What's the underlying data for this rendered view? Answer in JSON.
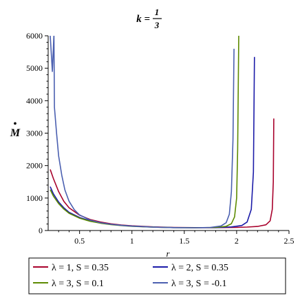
{
  "chart_data": {
    "type": "line",
    "title": {
      "lhs": "k =",
      "numerator": "1",
      "denominator": "3"
    },
    "xlabel": "r",
    "ylabel": "M",
    "ylabel_accent": "•",
    "xlim": [
      0.2,
      2.5
    ],
    "ylim": [
      0,
      6000
    ],
    "xticks": [
      0.5,
      1,
      1.5,
      2,
      2.5
    ],
    "xtick_labels": [
      "0.5",
      "1",
      "1.5",
      "2",
      "2.5"
    ],
    "yticks": [
      0,
      1000,
      2000,
      3000,
      4000,
      5000,
      6000
    ],
    "ytick_labels": [
      "0",
      "1000",
      "2000",
      "3000",
      "4000",
      "5000",
      "6000"
    ],
    "grid": false,
    "legend_position": "bottom",
    "series": [
      {
        "name": "λ = 1, S = 0.35",
        "color": "#a8002b",
        "points": [
          [
            0.22,
            1880
          ],
          [
            0.25,
            1600
          ],
          [
            0.3,
            1200
          ],
          [
            0.35,
            900
          ],
          [
            0.4,
            700
          ],
          [
            0.5,
            470
          ],
          [
            0.6,
            340
          ],
          [
            0.7,
            260
          ],
          [
            0.8,
            205
          ],
          [
            0.9,
            170
          ],
          [
            1.0,
            145
          ],
          [
            1.2,
            112
          ],
          [
            1.4,
            95
          ],
          [
            1.6,
            88
          ],
          [
            1.8,
            88
          ],
          [
            2.0,
            95
          ],
          [
            2.1,
            105
          ],
          [
            2.2,
            125
          ],
          [
            2.28,
            175
          ],
          [
            2.32,
            300
          ],
          [
            2.34,
            650
          ],
          [
            2.35,
            1500
          ],
          [
            2.355,
            3450
          ]
        ]
      },
      {
        "name": "λ = 2, S = 0.35",
        "color": "#1a1aa8",
        "points": [
          [
            0.22,
            1350
          ],
          [
            0.25,
            1130
          ],
          [
            0.3,
            880
          ],
          [
            0.35,
            700
          ],
          [
            0.4,
            560
          ],
          [
            0.5,
            400
          ],
          [
            0.6,
            300
          ],
          [
            0.7,
            235
          ],
          [
            0.8,
            190
          ],
          [
            0.9,
            158
          ],
          [
            1.0,
            135
          ],
          [
            1.2,
            106
          ],
          [
            1.4,
            90
          ],
          [
            1.6,
            85
          ],
          [
            1.8,
            90
          ],
          [
            1.95,
            110
          ],
          [
            2.05,
            155
          ],
          [
            2.1,
            260
          ],
          [
            2.14,
            650
          ],
          [
            2.16,
            1800
          ],
          [
            2.17,
            5350
          ]
        ]
      },
      {
        "name": "λ = 3, S = 0.1",
        "color": "#5c8a00",
        "points": [
          [
            0.22,
            1260
          ],
          [
            0.25,
            1060
          ],
          [
            0.3,
            830
          ],
          [
            0.35,
            660
          ],
          [
            0.4,
            530
          ],
          [
            0.5,
            380
          ],
          [
            0.6,
            285
          ],
          [
            0.7,
            225
          ],
          [
            0.8,
            183
          ],
          [
            0.9,
            153
          ],
          [
            1.0,
            130
          ],
          [
            1.2,
            103
          ],
          [
            1.4,
            88
          ],
          [
            1.6,
            84
          ],
          [
            1.8,
            95
          ],
          [
            1.9,
            130
          ],
          [
            1.95,
            210
          ],
          [
            1.98,
            420
          ],
          [
            2.0,
            1000
          ],
          [
            2.01,
            2500
          ],
          [
            2.02,
            6050
          ]
        ]
      },
      {
        "name": "λ = 3, S = -0.1",
        "color": "#4a5fb0",
        "points": [
          [
            0.22,
            6000
          ],
          [
            0.24,
            4900
          ],
          [
            0.255,
            6050
          ],
          [
            0.26,
            3800
          ],
          [
            0.28,
            3000
          ],
          [
            0.3,
            2300
          ],
          [
            0.33,
            1700
          ],
          [
            0.36,
            1250
          ],
          [
            0.4,
            900
          ],
          [
            0.45,
            640
          ],
          [
            0.5,
            480
          ],
          [
            0.6,
            320
          ],
          [
            0.7,
            240
          ],
          [
            0.8,
            190
          ],
          [
            0.9,
            157
          ],
          [
            1.0,
            133
          ],
          [
            1.2,
            104
          ],
          [
            1.4,
            88
          ],
          [
            1.6,
            84
          ],
          [
            1.75,
            95
          ],
          [
            1.85,
            140
          ],
          [
            1.9,
            240
          ],
          [
            1.93,
            500
          ],
          [
            1.95,
            1200
          ],
          [
            1.965,
            2800
          ],
          [
            1.975,
            5600
          ]
        ]
      }
    ]
  }
}
